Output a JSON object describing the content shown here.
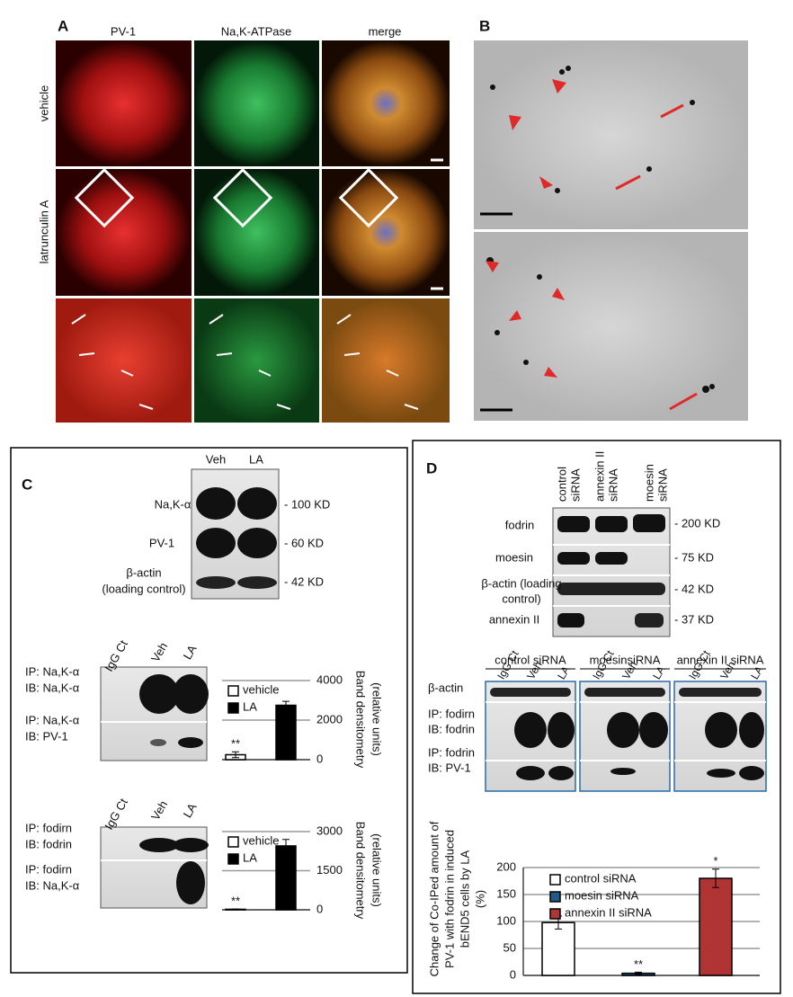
{
  "panel_a": {
    "label": "A",
    "columns": [
      "PV-1",
      "Na,K-ATPase",
      "merge"
    ],
    "rows": [
      "vehicle",
      "latrunculin A"
    ]
  },
  "panel_b": {
    "label": "B"
  },
  "panel_c": {
    "label": "C",
    "lanes": [
      "Veh",
      "LA"
    ],
    "bands": [
      "Na,K-α",
      "PV-1",
      "β-actin",
      "(loading control)"
    ],
    "sizes": [
      "- 100 KD",
      "- 60 KD",
      "- 42 KD"
    ],
    "ip1": {
      "lanes": [
        "IgG Ct",
        "Veh",
        "LA"
      ],
      "labels": [
        "IP: Na,K-α",
        "IB: Na,K-α",
        "IP: Na,K-α",
        "IB: PV-1"
      ]
    },
    "ip2": {
      "lanes": [
        "IgG Ct",
        "Veh",
        "LA"
      ],
      "labels": [
        "IP: fodirn",
        "IB: fodrin",
        "IP: fodirn",
        "IB: Na,K-α"
      ]
    }
  },
  "panel_d": {
    "label": "D",
    "lanes": [
      [
        "control",
        "siRNA"
      ],
      [
        "annexin II",
        "siRNA"
      ],
      [
        "moesin",
        "siRNA"
      ]
    ],
    "bands": [
      "fodrin",
      "moesin",
      "β-actin (loading",
      "control)",
      "annexin II"
    ],
    "sizes": [
      "- 200 KD",
      "- 75 KD",
      "- 42 KD",
      "- 37 KD"
    ],
    "groups": [
      "control siRNA",
      "moesinsiRNA",
      "annexin II siRNA"
    ],
    "group_lanes": [
      "IgG Ct",
      "Veh",
      "LA"
    ],
    "rows": [
      "β-actin",
      "IP: fodirn",
      "IB: fodrin",
      "IP: fodrin",
      "IB: PV-1"
    ]
  },
  "chart_data": [
    {
      "type": "bar",
      "ylabel": [
        "Band densitometry",
        "(relative units)"
      ],
      "ylim": [
        0,
        4000
      ],
      "yticks": [
        0,
        2000,
        4000
      ],
      "grid": true,
      "legend": "top-left",
      "series": [
        {
          "name": "vehicle",
          "color": "#ffffff",
          "values": [
            250
          ],
          "errors": [
            150
          ],
          "annotation": "**"
        },
        {
          "name": "LA",
          "color": "#000000",
          "values": [
            2750
          ],
          "errors": [
            200
          ]
        }
      ]
    },
    {
      "type": "bar",
      "ylabel": [
        "Band densitometry",
        "(relative units)"
      ],
      "ylim": [
        0,
        3000
      ],
      "yticks": [
        0,
        1500,
        3000
      ],
      "grid": true,
      "legend": "top-left",
      "series": [
        {
          "name": "vehicle",
          "color": "#ffffff",
          "values": [
            20
          ],
          "errors": [
            10
          ],
          "annotation": "**"
        },
        {
          "name": "LA",
          "color": "#000000",
          "values": [
            2450
          ],
          "errors": [
            250
          ]
        }
      ]
    },
    {
      "type": "bar",
      "ylabel": [
        "Change of Co-IPed amount of",
        "PV-1 with fodrin in induced",
        "bEND5 cells by LA",
        "(%)"
      ],
      "ylim": [
        0,
        200
      ],
      "yticks": [
        0,
        50,
        100,
        150,
        200
      ],
      "grid": true,
      "legend": "top-left",
      "series": [
        {
          "name": "control siRNA",
          "color": "#ffffff",
          "values": [
            98
          ],
          "errors": [
            12
          ]
        },
        {
          "name": "moesin siRNA",
          "color": "#1f5a8c",
          "values": [
            4
          ],
          "errors": [
            2
          ],
          "annotation": "**"
        },
        {
          "name": "annexin II siRNA",
          "color": "#b03434",
          "values": [
            180
          ],
          "errors": [
            17
          ],
          "annotation": "*"
        }
      ]
    }
  ]
}
